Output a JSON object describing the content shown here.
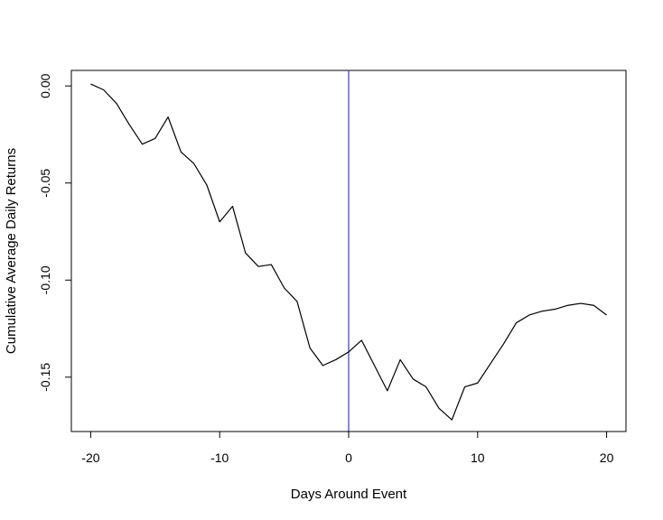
{
  "chart_data": {
    "type": "line",
    "title": "",
    "xlabel": "Days Around Event",
    "ylabel": "Cumulative Average Daily Returns",
    "xlim": [
      -21.5,
      21.5
    ],
    "ylim": [
      -0.178,
      0.008
    ],
    "x_ticks": [
      -20,
      -10,
      0,
      10,
      20
    ],
    "x_tick_labels": [
      "-20",
      "-10",
      "0",
      "10",
      "20"
    ],
    "y_ticks": [
      0.0,
      -0.05,
      -0.1,
      -0.15
    ],
    "y_tick_labels": [
      "0.00",
      "-0.05",
      "-0.10",
      "-0.15"
    ],
    "grid": false,
    "reference_line": {
      "x": 0,
      "color": "#3b3bbd"
    },
    "series": [
      {
        "color": "#000000",
        "x": [
          -20,
          -19,
          -18,
          -17,
          -16,
          -15,
          -14,
          -13,
          -12,
          -11,
          -10,
          -9,
          -8,
          -7,
          -6,
          -5,
          -4,
          -3,
          -2,
          -1,
          0,
          1,
          2,
          3,
          4,
          5,
          6,
          7,
          8,
          9,
          10,
          11,
          12,
          13,
          14,
          15,
          16,
          17,
          18,
          19,
          20
        ],
        "y": [
          0.001,
          -0.002,
          -0.009,
          -0.02,
          -0.03,
          -0.027,
          -0.016,
          -0.034,
          -0.04,
          -0.051,
          -0.07,
          -0.062,
          -0.086,
          -0.093,
          -0.092,
          -0.104,
          -0.111,
          -0.135,
          -0.144,
          -0.141,
          -0.137,
          -0.131,
          -0.144,
          -0.157,
          -0.141,
          -0.151,
          -0.155,
          -0.166,
          -0.172,
          -0.155,
          -0.153,
          -0.143,
          -0.133,
          -0.122,
          -0.118,
          -0.116,
          -0.115,
          -0.113,
          -0.112,
          -0.113,
          -0.118
        ]
      }
    ]
  }
}
